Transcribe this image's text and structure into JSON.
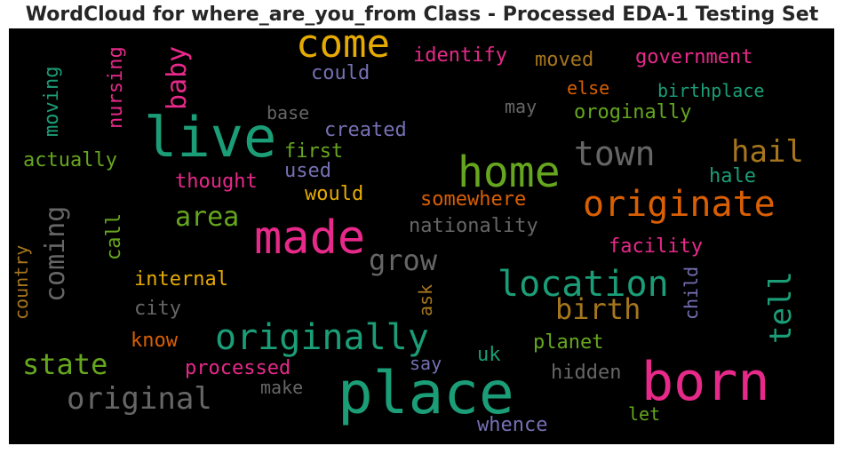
{
  "title": "WordCloud for where_are_you_from Class - Processed EDA-1 Testing Set",
  "words": [
    {
      "text": "come",
      "color": "#e6ab02"
    },
    {
      "text": "live",
      "color": "#1b9e77"
    },
    {
      "text": "home",
      "color": "#66a61e"
    },
    {
      "text": "town",
      "color": "#666666"
    },
    {
      "text": "hail",
      "color": "#a6761d"
    },
    {
      "text": "originate",
      "color": "#d95f02"
    },
    {
      "text": "made",
      "color": "#e7298a"
    },
    {
      "text": "location",
      "color": "#1b9e77"
    },
    {
      "text": "originally",
      "color": "#1b9e77"
    },
    {
      "text": "birth",
      "color": "#a6761d"
    },
    {
      "text": "place",
      "color": "#1b9e77"
    },
    {
      "text": "born",
      "color": "#e7298a"
    },
    {
      "text": "original",
      "color": "#666666"
    },
    {
      "text": "state",
      "color": "#66a61e"
    },
    {
      "text": "area",
      "color": "#66a61e"
    },
    {
      "text": "grow",
      "color": "#666666"
    },
    {
      "text": "identify",
      "color": "#e7298a"
    },
    {
      "text": "moved",
      "color": "#a6761d"
    },
    {
      "text": "government",
      "color": "#e7298a"
    },
    {
      "text": "could",
      "color": "#7570b3"
    },
    {
      "text": "else",
      "color": "#d95f02"
    },
    {
      "text": "birthplace",
      "color": "#1b9e77"
    },
    {
      "text": "may",
      "color": "#666666"
    },
    {
      "text": "oroginally",
      "color": "#66a61e"
    },
    {
      "text": "base",
      "color": "#666666"
    },
    {
      "text": "created",
      "color": "#7570b3"
    },
    {
      "text": "first",
      "color": "#66a61e"
    },
    {
      "text": "actually",
      "color": "#66a61e"
    },
    {
      "text": "used",
      "color": "#7570b3"
    },
    {
      "text": "thought",
      "color": "#e7298a"
    },
    {
      "text": "would",
      "color": "#e6ab02"
    },
    {
      "text": "somewhere",
      "color": "#d95f02"
    },
    {
      "text": "hale",
      "color": "#1b9e77"
    },
    {
      "text": "nationality",
      "color": "#666666"
    },
    {
      "text": "facility",
      "color": "#e7298a"
    },
    {
      "text": "internal",
      "color": "#e6ab02"
    },
    {
      "text": "city",
      "color": "#666666"
    },
    {
      "text": "know",
      "color": "#d95f02"
    },
    {
      "text": "processed",
      "color": "#e7298a"
    },
    {
      "text": "make",
      "color": "#666666"
    },
    {
      "text": "say",
      "color": "#7570b3"
    },
    {
      "text": "uk",
      "color": "#1b9e77"
    },
    {
      "text": "planet",
      "color": "#66a61e"
    },
    {
      "text": "hidden",
      "color": "#666666"
    },
    {
      "text": "let",
      "color": "#66a61e"
    },
    {
      "text": "whence",
      "color": "#7570b3"
    },
    {
      "text": "moving",
      "color": "#1b9e77"
    },
    {
      "text": "nursing",
      "color": "#e7298a"
    },
    {
      "text": "baby",
      "color": "#e7298a"
    },
    {
      "text": "coming",
      "color": "#666666"
    },
    {
      "text": "call",
      "color": "#66a61e"
    },
    {
      "text": "country",
      "color": "#a6761d"
    },
    {
      "text": "ask",
      "color": "#a6761d"
    },
    {
      "text": "child",
      "color": "#7570b3"
    },
    {
      "text": "tell",
      "color": "#1b9e77"
    }
  ]
}
